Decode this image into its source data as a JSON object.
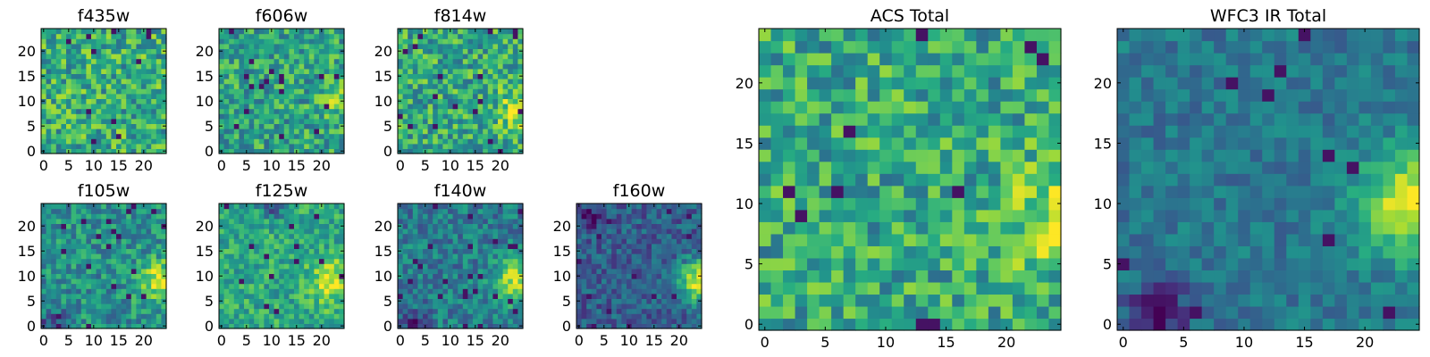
{
  "chart_data": [
    {
      "type": "heatmap",
      "title": "f435w",
      "grid": [
        25,
        25
      ],
      "xticks": [
        "0",
        "5",
        "10",
        "15",
        "20"
      ],
      "yticks": [
        "0",
        "5",
        "10",
        "15",
        "20"
      ],
      "colormap": "viridis",
      "pattern": {
        "mean": 0.62,
        "noise": 0.26,
        "hotspot": null,
        "darkspot": null,
        "seed": 11
      }
    },
    {
      "type": "heatmap",
      "title": "f606w",
      "grid": [
        25,
        25
      ],
      "xticks": [
        "0",
        "5",
        "10",
        "15",
        "20"
      ],
      "yticks": [
        "0",
        "5",
        "10",
        "15",
        "20"
      ],
      "colormap": "viridis",
      "pattern": {
        "mean": 0.58,
        "noise": 0.24,
        "hotspot": {
          "x": 24,
          "y": 10,
          "strength": 0.2
        },
        "darkspot": null,
        "seed": 23
      }
    },
    {
      "type": "heatmap",
      "title": "f814w",
      "grid": [
        25,
        25
      ],
      "xticks": [
        "0",
        "5",
        "10",
        "15",
        "20"
      ],
      "yticks": [
        "0",
        "5",
        "10",
        "15",
        "20"
      ],
      "colormap": "viridis",
      "pattern": {
        "mean": 0.6,
        "noise": 0.25,
        "hotspot": {
          "x": 24,
          "y": 8,
          "strength": 0.3
        },
        "darkspot": null,
        "seed": 37
      }
    },
    {
      "type": "heatmap",
      "title": "f105w",
      "grid": [
        25,
        25
      ],
      "xticks": [
        "0",
        "5",
        "10",
        "15",
        "20"
      ],
      "yticks": [
        "0",
        "5",
        "10",
        "15",
        "20"
      ],
      "colormap": "viridis",
      "pattern": {
        "mean": 0.5,
        "noise": 0.2,
        "hotspot": {
          "x": 23,
          "y": 9,
          "strength": 0.4
        },
        "darkspot": {
          "x": 2,
          "y": 1,
          "strength": 0.35
        },
        "seed": 41
      }
    },
    {
      "type": "heatmap",
      "title": "f125w",
      "grid": [
        25,
        25
      ],
      "xticks": [
        "0",
        "5",
        "10",
        "15",
        "20"
      ],
      "yticks": [
        "0",
        "5",
        "10",
        "15",
        "20"
      ],
      "colormap": "viridis",
      "pattern": {
        "mean": 0.6,
        "noise": 0.18,
        "hotspot": {
          "x": 22,
          "y": 9,
          "strength": 0.35
        },
        "darkspot": {
          "x": 10,
          "y": 24,
          "strength": 0.3
        },
        "seed": 53
      }
    },
    {
      "type": "heatmap",
      "title": "f140w",
      "grid": [
        25,
        25
      ],
      "xticks": [
        "0",
        "5",
        "10",
        "15",
        "20"
      ],
      "yticks": [
        "0",
        "5",
        "10",
        "15",
        "20"
      ],
      "colormap": "viridis",
      "pattern": {
        "mean": 0.42,
        "noise": 0.18,
        "hotspot": {
          "x": 23,
          "y": 9,
          "strength": 0.5
        },
        "darkspot": {
          "x": 3,
          "y": 1,
          "strength": 0.3
        },
        "seed": 67
      }
    },
    {
      "type": "heatmap",
      "title": "f160w",
      "grid": [
        25,
        25
      ],
      "xticks": [
        "0",
        "5",
        "10",
        "15",
        "20"
      ],
      "yticks": [
        "0",
        "5",
        "10",
        "15",
        "20"
      ],
      "colormap": "viridis",
      "pattern": {
        "mean": 0.3,
        "noise": 0.16,
        "hotspot": {
          "x": 24,
          "y": 9,
          "strength": 0.65
        },
        "darkspot": {
          "x": 2,
          "y": 22,
          "strength": 0.25
        },
        "seed": 79
      }
    },
    {
      "type": "heatmap",
      "title": "ACS Total",
      "grid": [
        25,
        25
      ],
      "xticks": [
        "0",
        "5",
        "10",
        "15",
        "20"
      ],
      "yticks": [
        "0",
        "5",
        "10",
        "15",
        "20"
      ],
      "colormap": "viridis",
      "pattern": {
        "mean": 0.6,
        "noise": 0.24,
        "hotspot": {
          "x": 24,
          "y": 9,
          "strength": 0.3
        },
        "darkspot": null,
        "seed": 97
      }
    },
    {
      "type": "heatmap",
      "title": "WFC3 IR Total",
      "grid": [
        25,
        25
      ],
      "xticks": [
        "0",
        "5",
        "10",
        "15",
        "20"
      ],
      "yticks": [
        "0",
        "5",
        "10",
        "15",
        "20"
      ],
      "colormap": "viridis",
      "pattern": {
        "mean": 0.4,
        "noise": 0.12,
        "hotspot": {
          "x": 24,
          "y": 10,
          "strength": 0.6
        },
        "darkspot": {
          "x": 3,
          "y": 1,
          "strength": 0.4
        },
        "seed": 113
      }
    }
  ]
}
